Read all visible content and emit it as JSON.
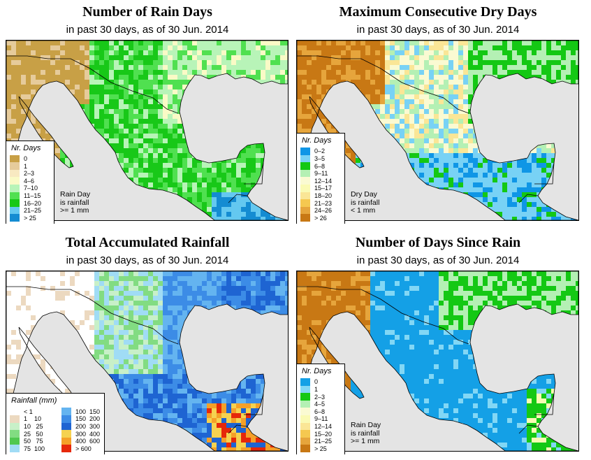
{
  "panels": [
    {
      "id": "rain-days",
      "title": "Number of Rain Days",
      "subtitle": "in past 30 days, as of  30 Jun. 2014",
      "legend": {
        "title": "Nr. Days",
        "items": [
          {
            "label": "0",
            "color": "#c8a046"
          },
          {
            "label": "1",
            "color": "#e6cb9b"
          },
          {
            "label": "2–3",
            "color": "#f8e9c1"
          },
          {
            "label": "4–6",
            "color": "#fafac6"
          },
          {
            "label": "7–10",
            "color": "#b8f4b8"
          },
          {
            "label": "11–15",
            "color": "#50e050"
          },
          {
            "label": "16–20",
            "color": "#18c818"
          },
          {
            "label": "21–25",
            "color": "#64c8f0"
          },
          {
            "label": "> 25",
            "color": "#148cd2"
          }
        ]
      },
      "note": [
        "Rain Day",
        "is rainfall",
        ">= 1 mm"
      ]
    },
    {
      "id": "dry-days",
      "title": "Maximum Consecutive Dry Days",
      "subtitle": "in past 30 days, as of  30 Jun. 2014",
      "legend": {
        "title": "Nr. Days",
        "items": [
          {
            "label": "0–2",
            "color": "#0f96e6"
          },
          {
            "label": "3–5",
            "color": "#78d2f5"
          },
          {
            "label": "6–8",
            "color": "#14c814"
          },
          {
            "label": "9–11",
            "color": "#b4f0b4"
          },
          {
            "label": "12–14",
            "color": "#fafad2"
          },
          {
            "label": "15–17",
            "color": "#fafab4"
          },
          {
            "label": "18–20",
            "color": "#fae696"
          },
          {
            "label": "21–23",
            "color": "#f5c850"
          },
          {
            "label": "24–26",
            "color": "#e6a53c"
          },
          {
            "label": "> 26",
            "color": "#c87814"
          }
        ]
      },
      "note": [
        "Dry Day",
        "is rainfall",
        "< 1 mm"
      ]
    },
    {
      "id": "total-rainfall",
      "title": "Total Accumulated Rainfall",
      "subtitle": "in past 30 days, as of  30 Jun. 2014",
      "legend": {
        "title": "Rainfall (mm)",
        "items": [
          {
            "label": "< 1",
            "color": "#ffffff"
          },
          {
            "label": "1    10",
            "color": "#ecd9c0"
          },
          {
            "label": "10   25",
            "color": "#c8f0c8"
          },
          {
            "label": "25   50",
            "color": "#82dc82"
          },
          {
            "label": "50   75",
            "color": "#50c850"
          },
          {
            "label": "75  100",
            "color": "#a0dcf5"
          },
          {
            "label": "100  150",
            "color": "#64b4f0"
          },
          {
            "label": "150  200",
            "color": "#3c8ce6"
          },
          {
            "label": "200  300",
            "color": "#1e64d2"
          },
          {
            "label": "300  400",
            "color": "#f5d250"
          },
          {
            "label": "400  600",
            "color": "#f5a028"
          },
          {
            "label": "> 600",
            "color": "#e6280a"
          }
        ]
      },
      "note": []
    },
    {
      "id": "days-since-rain",
      "title": "Number of Days Since Rain",
      "subtitle": "in past 30 days, as of  30 Jun. 2014",
      "legend": {
        "title": "Nr. Days",
        "items": [
          {
            "label": "0",
            "color": "#14a0e6"
          },
          {
            "label": "1",
            "color": "#82d7f5"
          },
          {
            "label": "2–3",
            "color": "#14c814"
          },
          {
            "label": "4–5",
            "color": "#b4f0b4"
          },
          {
            "label": "6–8",
            "color": "#fafad2"
          },
          {
            "label": "9–11",
            "color": "#fafab4"
          },
          {
            "label": "12–14",
            "color": "#fae696"
          },
          {
            "label": "15–20",
            "color": "#f5c850"
          },
          {
            "label": "21–25",
            "color": "#e6a53c"
          },
          {
            "label": "> 25",
            "color": "#c87814"
          }
        ]
      },
      "note": [
        "Rain Day",
        "is rainfall",
        ">= 1 mm"
      ]
    }
  ]
}
